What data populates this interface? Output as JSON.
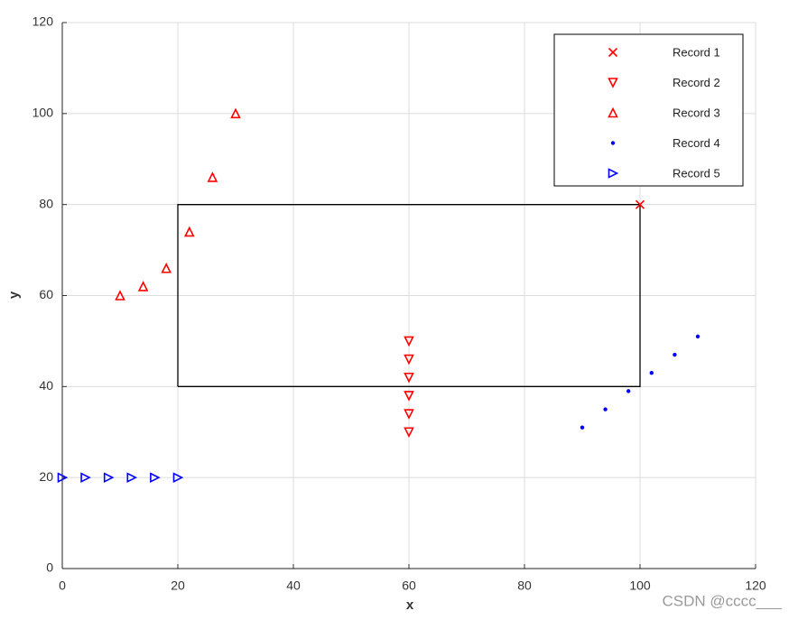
{
  "chart_data": {
    "type": "scatter",
    "xlabel": "x",
    "ylabel": "y",
    "xlim": [
      0,
      120
    ],
    "ylim": [
      0,
      120
    ],
    "xticks": [
      0,
      20,
      40,
      60,
      80,
      100,
      120
    ],
    "yticks": [
      0,
      20,
      40,
      60,
      80,
      100,
      120
    ],
    "grid": true,
    "legend": "upper right",
    "rectangle": {
      "x": [
        20,
        100,
        100,
        20,
        20
      ],
      "y": [
        40,
        40,
        80,
        80,
        40
      ],
      "color": "#000000"
    },
    "series": [
      {
        "name": "Record 1",
        "color": "#ff0000",
        "marker": "x",
        "x": [
          100
        ],
        "values": [
          80
        ]
      },
      {
        "name": "Record 2",
        "color": "#ff0000",
        "marker": "v",
        "x": [
          60,
          60,
          60,
          60,
          60,
          60
        ],
        "values": [
          30,
          34,
          38,
          42,
          46,
          50
        ]
      },
      {
        "name": "Record 3",
        "color": "#ff0000",
        "marker": "^",
        "x": [
          10,
          14,
          18,
          22,
          26,
          30
        ],
        "values": [
          60,
          62,
          66,
          74,
          86,
          100
        ]
      },
      {
        "name": "Record 4",
        "color": "#0000ff",
        "marker": ".",
        "x": [
          90,
          94,
          98,
          102,
          106,
          110
        ],
        "values": [
          31,
          35,
          39,
          43,
          47,
          51
        ]
      },
      {
        "name": "Record 5",
        "color": "#0000ff",
        "marker": ">",
        "x": [
          0,
          4,
          8,
          12,
          16,
          20
        ],
        "values": [
          20,
          20,
          20,
          20,
          20,
          20
        ]
      }
    ],
    "watermark": "CSDN @cccc___"
  }
}
